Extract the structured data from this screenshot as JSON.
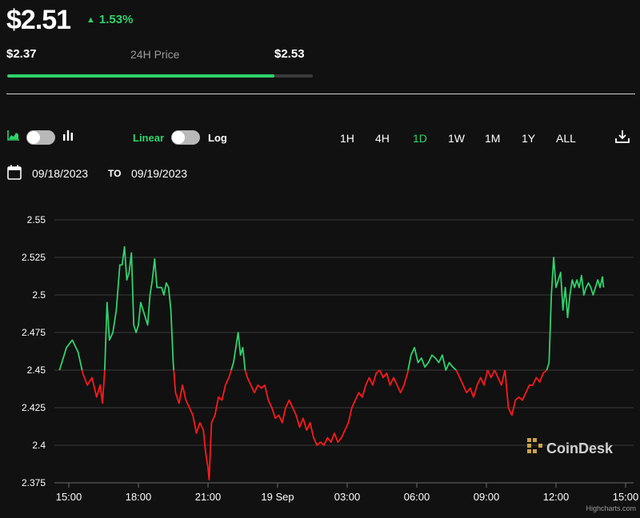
{
  "header": {
    "price": "$2.51",
    "change_arrow": "▲",
    "change_pct": "1.53%",
    "low": "$2.37",
    "range_label": "24H Price",
    "high": "$2.53",
    "range_position": 0.875
  },
  "controls": {
    "chart_type_icons": [
      "area-chart-icon",
      "bar-chart-icon"
    ],
    "linear_label": "Linear",
    "log_label": "Log",
    "ranges": [
      "1H",
      "4H",
      "1D",
      "1W",
      "1M",
      "1Y",
      "ALL"
    ],
    "active_range": "1D",
    "download_icon": "download-icon"
  },
  "dates": {
    "from": "09/18/2023",
    "to_label": "TO",
    "to": "09/19/2023"
  },
  "colors": {
    "up": "#2fd36d",
    "down": "#ff1a1a",
    "background": "#111111",
    "grid": "#3b3b3b"
  },
  "chart_data": {
    "type": "line",
    "baseline": 2.45,
    "xlabel": "",
    "ylabel": "",
    "ylim": [
      2.375,
      2.55
    ],
    "yticks": [
      "2.375",
      "2.4",
      "2.425",
      "2.45",
      "2.475",
      "2.5",
      "2.525",
      "2.55"
    ],
    "xticks": [
      "15:00",
      "18:00",
      "21:00",
      "19 Sep",
      "03:00",
      "06:00",
      "09:00",
      "12:00",
      "15:00"
    ],
    "x_hours_from_1500": [
      0,
      3,
      6,
      9,
      12,
      15,
      18,
      21,
      24
    ],
    "points": [
      [
        -0.4,
        2.45
      ],
      [
        -0.1,
        2.465
      ],
      [
        0.15,
        2.47
      ],
      [
        0.4,
        2.462
      ],
      [
        0.6,
        2.448
      ],
      [
        0.8,
        2.44
      ],
      [
        1.0,
        2.445
      ],
      [
        1.2,
        2.432
      ],
      [
        1.35,
        2.44
      ],
      [
        1.45,
        2.428
      ],
      [
        1.55,
        2.45
      ],
      [
        1.65,
        2.495
      ],
      [
        1.75,
        2.47
      ],
      [
        1.9,
        2.475
      ],
      [
        2.05,
        2.49
      ],
      [
        2.2,
        2.52
      ],
      [
        2.3,
        2.52
      ],
      [
        2.4,
        2.532
      ],
      [
        2.5,
        2.51
      ],
      [
        2.6,
        2.515
      ],
      [
        2.7,
        2.528
      ],
      [
        2.8,
        2.48
      ],
      [
        2.9,
        2.475
      ],
      [
        3.0,
        2.48
      ],
      [
        3.1,
        2.495
      ],
      [
        3.2,
        2.49
      ],
      [
        3.3,
        2.485
      ],
      [
        3.4,
        2.48
      ],
      [
        3.5,
        2.5
      ],
      [
        3.6,
        2.51
      ],
      [
        3.7,
        2.524
      ],
      [
        3.8,
        2.505
      ],
      [
        3.9,
        2.505
      ],
      [
        4.0,
        2.505
      ],
      [
        4.1,
        2.5
      ],
      [
        4.2,
        2.508
      ],
      [
        4.3,
        2.505
      ],
      [
        4.4,
        2.49
      ],
      [
        4.5,
        2.455
      ],
      [
        4.6,
        2.435
      ],
      [
        4.75,
        2.428
      ],
      [
        4.9,
        2.44
      ],
      [
        5.05,
        2.43
      ],
      [
        5.2,
        2.425
      ],
      [
        5.35,
        2.42
      ],
      [
        5.5,
        2.408
      ],
      [
        5.65,
        2.415
      ],
      [
        5.8,
        2.41
      ],
      [
        5.9,
        2.395
      ],
      [
        6.0,
        2.385
      ],
      [
        6.05,
        2.377
      ],
      [
        6.15,
        2.415
      ],
      [
        6.3,
        2.42
      ],
      [
        6.45,
        2.432
      ],
      [
        6.6,
        2.43
      ],
      [
        6.75,
        2.44
      ],
      [
        6.9,
        2.445
      ],
      [
        7.0,
        2.45
      ],
      [
        7.1,
        2.455
      ],
      [
        7.2,
        2.465
      ],
      [
        7.3,
        2.475
      ],
      [
        7.4,
        2.46
      ],
      [
        7.5,
        2.465
      ],
      [
        7.6,
        2.45
      ],
      [
        7.7,
        2.445
      ],
      [
        7.85,
        2.44
      ],
      [
        8.0,
        2.435
      ],
      [
        8.15,
        2.44
      ],
      [
        8.3,
        2.438
      ],
      [
        8.45,
        2.44
      ],
      [
        8.6,
        2.43
      ],
      [
        8.75,
        2.425
      ],
      [
        8.9,
        2.418
      ],
      [
        9.05,
        2.42
      ],
      [
        9.2,
        2.415
      ],
      [
        9.35,
        2.425
      ],
      [
        9.5,
        2.43
      ],
      [
        9.65,
        2.425
      ],
      [
        9.8,
        2.42
      ],
      [
        9.95,
        2.412
      ],
      [
        10.1,
        2.418
      ],
      [
        10.25,
        2.41
      ],
      [
        10.4,
        2.415
      ],
      [
        10.55,
        2.405
      ],
      [
        10.7,
        2.4
      ],
      [
        10.85,
        2.402
      ],
      [
        11.0,
        2.4
      ],
      [
        11.15,
        2.405
      ],
      [
        11.3,
        2.402
      ],
      [
        11.45,
        2.408
      ],
      [
        11.6,
        2.402
      ],
      [
        11.75,
        2.405
      ],
      [
        11.9,
        2.41
      ],
      [
        12.05,
        2.415
      ],
      [
        12.2,
        2.425
      ],
      [
        12.35,
        2.43
      ],
      [
        12.5,
        2.435
      ],
      [
        12.65,
        2.432
      ],
      [
        12.8,
        2.44
      ],
      [
        12.95,
        2.445
      ],
      [
        13.1,
        2.44
      ],
      [
        13.25,
        2.448
      ],
      [
        13.4,
        2.45
      ],
      [
        13.55,
        2.445
      ],
      [
        13.7,
        2.448
      ],
      [
        13.85,
        2.44
      ],
      [
        14.0,
        2.445
      ],
      [
        14.15,
        2.44
      ],
      [
        14.3,
        2.435
      ],
      [
        14.45,
        2.44
      ],
      [
        14.6,
        2.448
      ],
      [
        14.75,
        2.46
      ],
      [
        14.9,
        2.465
      ],
      [
        15.05,
        2.455
      ],
      [
        15.2,
        2.458
      ],
      [
        15.35,
        2.452
      ],
      [
        15.5,
        2.455
      ],
      [
        15.65,
        2.46
      ],
      [
        15.8,
        2.458
      ],
      [
        15.95,
        2.455
      ],
      [
        16.1,
        2.46
      ],
      [
        16.25,
        2.45
      ],
      [
        16.4,
        2.455
      ],
      [
        16.55,
        2.452
      ],
      [
        16.7,
        2.45
      ],
      [
        16.85,
        2.445
      ],
      [
        17.0,
        2.44
      ],
      [
        17.15,
        2.435
      ],
      [
        17.3,
        2.438
      ],
      [
        17.45,
        2.432
      ],
      [
        17.6,
        2.44
      ],
      [
        17.75,
        2.445
      ],
      [
        17.9,
        2.44
      ],
      [
        18.05,
        2.45
      ],
      [
        18.2,
        2.445
      ],
      [
        18.35,
        2.45
      ],
      [
        18.5,
        2.445
      ],
      [
        18.65,
        2.44
      ],
      [
        18.8,
        2.45
      ],
      [
        18.95,
        2.425
      ],
      [
        19.1,
        2.42
      ],
      [
        19.25,
        2.43
      ],
      [
        19.4,
        2.432
      ],
      [
        19.55,
        2.43
      ],
      [
        19.7,
        2.435
      ],
      [
        19.85,
        2.44
      ],
      [
        20.0,
        2.44
      ],
      [
        20.15,
        2.445
      ],
      [
        20.3,
        2.442
      ],
      [
        20.45,
        2.448
      ],
      [
        20.6,
        2.45
      ],
      [
        20.7,
        2.455
      ],
      [
        20.8,
        2.5
      ],
      [
        20.9,
        2.525
      ],
      [
        21.0,
        2.505
      ],
      [
        21.1,
        2.51
      ],
      [
        21.2,
        2.515
      ],
      [
        21.3,
        2.49
      ],
      [
        21.4,
        2.505
      ],
      [
        21.5,
        2.485
      ],
      [
        21.6,
        2.5
      ],
      [
        21.7,
        2.51
      ],
      [
        21.8,
        2.505
      ],
      [
        21.9,
        2.51
      ],
      [
        22.0,
        2.505
      ],
      [
        22.1,
        2.513
      ],
      [
        22.2,
        2.5
      ],
      [
        22.3,
        2.505
      ],
      [
        22.4,
        2.508
      ],
      [
        22.5,
        2.505
      ],
      [
        22.6,
        2.5
      ],
      [
        22.7,
        2.505
      ],
      [
        22.8,
        2.51
      ],
      [
        22.9,
        2.505
      ],
      [
        23.0,
        2.512
      ],
      [
        23.05,
        2.505
      ]
    ]
  },
  "watermark": "CoinDesk",
  "credits": "Highcharts.com"
}
